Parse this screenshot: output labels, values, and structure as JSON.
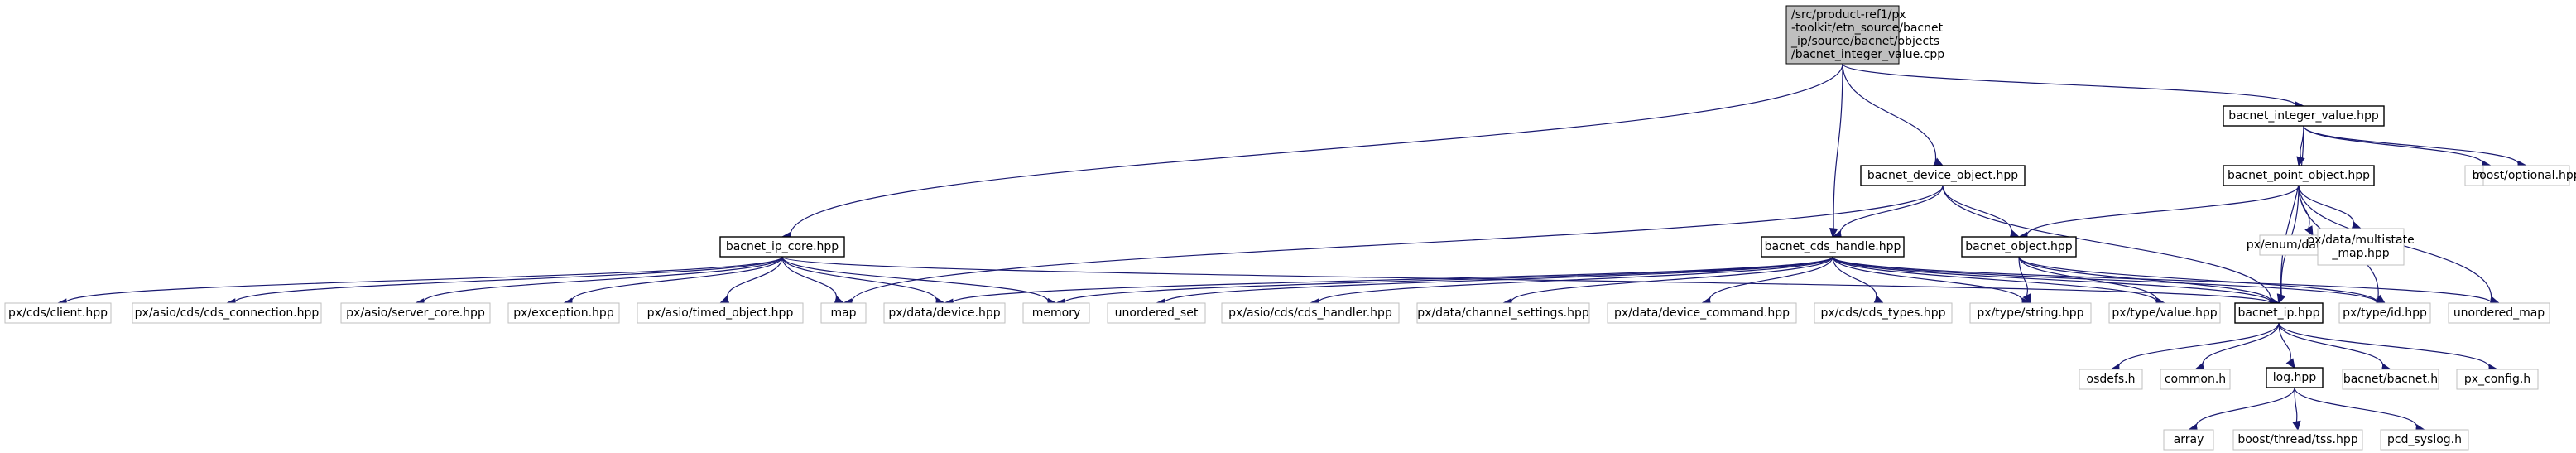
{
  "diagram": {
    "colors": {
      "edge": "#191970",
      "root_fill": "#bfbfbf",
      "box_border": "#000000",
      "light_border": "#bfbfbf"
    },
    "nodes": [
      {
        "id": "root",
        "lines": [
          "/src/product-ref1/px",
          "-toolkit/etn_source/bacnet",
          "_ip/source/bacnet/objects",
          "/bacnet_integer_value.cpp"
        ],
        "kind": "root"
      },
      {
        "id": "bacnet_integer_value_hpp",
        "lines": [
          "bacnet_integer_value.hpp"
        ],
        "kind": "bold"
      },
      {
        "id": "bacnet_device_object_hpp",
        "lines": [
          "bacnet_device_object.hpp"
        ],
        "kind": "bold"
      },
      {
        "id": "bacnet_point_object_hpp",
        "lines": [
          "bacnet_point_object.hpp"
        ],
        "kind": "bold"
      },
      {
        "id": "mutex",
        "lines": [
          "mutex"
        ],
        "kind": "light"
      },
      {
        "id": "boost_optional_hpp",
        "lines": [
          "boost/optional.hpp"
        ],
        "kind": "light"
      },
      {
        "id": "bacnet_ip_core_hpp",
        "lines": [
          "bacnet_ip_core.hpp"
        ],
        "kind": "bold"
      },
      {
        "id": "bacnet_cds_handle_hpp",
        "lines": [
          "bacnet_cds_handle.hpp"
        ],
        "kind": "bold"
      },
      {
        "id": "bacnet_object_hpp",
        "lines": [
          "bacnet_object.hpp"
        ],
        "kind": "bold"
      },
      {
        "id": "px_enum_datatype_hpp",
        "lines": [
          "px/enum/datatype.hpp"
        ],
        "kind": "light"
      },
      {
        "id": "px_data_multistate_map_hpp",
        "lines": [
          "px/data/multistate",
          "_map.hpp"
        ],
        "kind": "light"
      },
      {
        "id": "px_cds_client_hpp",
        "lines": [
          "px/cds/client.hpp"
        ],
        "kind": "light"
      },
      {
        "id": "px_asio_cds_cds_connection_hpp",
        "lines": [
          "px/asio/cds/cds_connection.hpp"
        ],
        "kind": "light"
      },
      {
        "id": "px_asio_server_core_hpp",
        "lines": [
          "px/asio/server_core.hpp"
        ],
        "kind": "light"
      },
      {
        "id": "px_exception_hpp",
        "lines": [
          "px/exception.hpp"
        ],
        "kind": "light"
      },
      {
        "id": "px_asio_timed_object_hpp",
        "lines": [
          "px/asio/timed_object.hpp"
        ],
        "kind": "light"
      },
      {
        "id": "map",
        "lines": [
          "map"
        ],
        "kind": "light"
      },
      {
        "id": "px_data_device_hpp",
        "lines": [
          "px/data/device.hpp"
        ],
        "kind": "light"
      },
      {
        "id": "memory",
        "lines": [
          "memory"
        ],
        "kind": "light"
      },
      {
        "id": "unordered_set",
        "lines": [
          "unordered_set"
        ],
        "kind": "light"
      },
      {
        "id": "px_asio_cds_cds_handler_hpp",
        "lines": [
          "px/asio/cds/cds_handler.hpp"
        ],
        "kind": "light"
      },
      {
        "id": "px_data_channel_settings_hpp",
        "lines": [
          "px/data/channel_settings.hpp"
        ],
        "kind": "light"
      },
      {
        "id": "px_data_device_command_hpp",
        "lines": [
          "px/data/device_command.hpp"
        ],
        "kind": "light"
      },
      {
        "id": "px_cds_cds_types_hpp",
        "lines": [
          "px/cds/cds_types.hpp"
        ],
        "kind": "light"
      },
      {
        "id": "px_type_string_hpp",
        "lines": [
          "px/type/string.hpp"
        ],
        "kind": "light"
      },
      {
        "id": "px_type_value_hpp",
        "lines": [
          "px/type/value.hpp"
        ],
        "kind": "light"
      },
      {
        "id": "bacnet_ip_hpp",
        "lines": [
          "bacnet_ip.hpp"
        ],
        "kind": "bold"
      },
      {
        "id": "px_type_id_hpp",
        "lines": [
          "px/type/id.hpp"
        ],
        "kind": "light"
      },
      {
        "id": "unordered_map",
        "lines": [
          "unordered_map"
        ],
        "kind": "light"
      },
      {
        "id": "osdefs_h",
        "lines": [
          "osdefs.h"
        ],
        "kind": "light"
      },
      {
        "id": "common_h",
        "lines": [
          "common.h"
        ],
        "kind": "light"
      },
      {
        "id": "log_hpp",
        "lines": [
          "log.hpp"
        ],
        "kind": "bold"
      },
      {
        "id": "bacnet_bacnet_h",
        "lines": [
          "bacnet/bacnet.h"
        ],
        "kind": "light"
      },
      {
        "id": "px_config_h",
        "lines": [
          "px_config.h"
        ],
        "kind": "light"
      },
      {
        "id": "array",
        "lines": [
          "array"
        ],
        "kind": "light"
      },
      {
        "id": "boost_thread_tss_hpp",
        "lines": [
          "boost/thread/tss.hpp"
        ],
        "kind": "light"
      },
      {
        "id": "pcd_syslog_h",
        "lines": [
          "pcd_syslog.h"
        ],
        "kind": "light"
      }
    ],
    "edges": [
      [
        "root",
        "bacnet_integer_value_hpp"
      ],
      [
        "root",
        "bacnet_device_object_hpp"
      ],
      [
        "root",
        "bacnet_ip_core_hpp"
      ],
      [
        "root",
        "bacnet_cds_handle_hpp"
      ],
      [
        "bacnet_integer_value_hpp",
        "bacnet_point_object_hpp"
      ],
      [
        "bacnet_integer_value_hpp",
        "mutex"
      ],
      [
        "bacnet_integer_value_hpp",
        "boost_optional_hpp"
      ],
      [
        "bacnet_integer_value_hpp",
        "bacnet_ip_hpp"
      ],
      [
        "bacnet_device_object_hpp",
        "bacnet_cds_handle_hpp"
      ],
      [
        "bacnet_device_object_hpp",
        "bacnet_object_hpp"
      ],
      [
        "bacnet_device_object_hpp",
        "map"
      ],
      [
        "bacnet_device_object_hpp",
        "bacnet_ip_hpp"
      ],
      [
        "bacnet_point_object_hpp",
        "bacnet_object_hpp"
      ],
      [
        "bacnet_point_object_hpp",
        "px_enum_datatype_hpp"
      ],
      [
        "bacnet_point_object_hpp",
        "px_data_multistate_map_hpp"
      ],
      [
        "bacnet_point_object_hpp",
        "bacnet_ip_hpp"
      ],
      [
        "bacnet_point_object_hpp",
        "px_type_id_hpp"
      ],
      [
        "bacnet_point_object_hpp",
        "unordered_map"
      ],
      [
        "bacnet_ip_core_hpp",
        "px_cds_client_hpp"
      ],
      [
        "bacnet_ip_core_hpp",
        "px_asio_cds_cds_connection_hpp"
      ],
      [
        "bacnet_ip_core_hpp",
        "px_asio_server_core_hpp"
      ],
      [
        "bacnet_ip_core_hpp",
        "px_exception_hpp"
      ],
      [
        "bacnet_ip_core_hpp",
        "px_asio_timed_object_hpp"
      ],
      [
        "bacnet_ip_core_hpp",
        "map"
      ],
      [
        "bacnet_ip_core_hpp",
        "px_data_device_hpp"
      ],
      [
        "bacnet_ip_core_hpp",
        "memory"
      ],
      [
        "bacnet_ip_core_hpp",
        "bacnet_ip_hpp"
      ],
      [
        "bacnet_cds_handle_hpp",
        "px_data_device_hpp"
      ],
      [
        "bacnet_cds_handle_hpp",
        "memory"
      ],
      [
        "bacnet_cds_handle_hpp",
        "unordered_set"
      ],
      [
        "bacnet_cds_handle_hpp",
        "px_asio_cds_cds_handler_hpp"
      ],
      [
        "bacnet_cds_handle_hpp",
        "px_data_channel_settings_hpp"
      ],
      [
        "bacnet_cds_handle_hpp",
        "px_data_device_command_hpp"
      ],
      [
        "bacnet_cds_handle_hpp",
        "px_cds_cds_types_hpp"
      ],
      [
        "bacnet_cds_handle_hpp",
        "px_type_string_hpp"
      ],
      [
        "bacnet_cds_handle_hpp",
        "px_type_value_hpp"
      ],
      [
        "bacnet_cds_handle_hpp",
        "bacnet_ip_hpp"
      ],
      [
        "bacnet_cds_handle_hpp",
        "px_type_id_hpp"
      ],
      [
        "bacnet_cds_handle_hpp",
        "unordered_map"
      ],
      [
        "bacnet_object_hpp",
        "px_type_string_hpp"
      ],
      [
        "bacnet_object_hpp",
        "px_type_value_hpp"
      ],
      [
        "bacnet_object_hpp",
        "bacnet_ip_hpp"
      ],
      [
        "bacnet_object_hpp",
        "px_type_id_hpp"
      ],
      [
        "bacnet_ip_hpp",
        "osdefs_h"
      ],
      [
        "bacnet_ip_hpp",
        "common_h"
      ],
      [
        "bacnet_ip_hpp",
        "log_hpp"
      ],
      [
        "bacnet_ip_hpp",
        "bacnet_bacnet_h"
      ],
      [
        "bacnet_ip_hpp",
        "px_config_h"
      ],
      [
        "log_hpp",
        "array"
      ],
      [
        "log_hpp",
        "boost_thread_tss_hpp"
      ],
      [
        "log_hpp",
        "pcd_syslog_h"
      ]
    ]
  }
}
